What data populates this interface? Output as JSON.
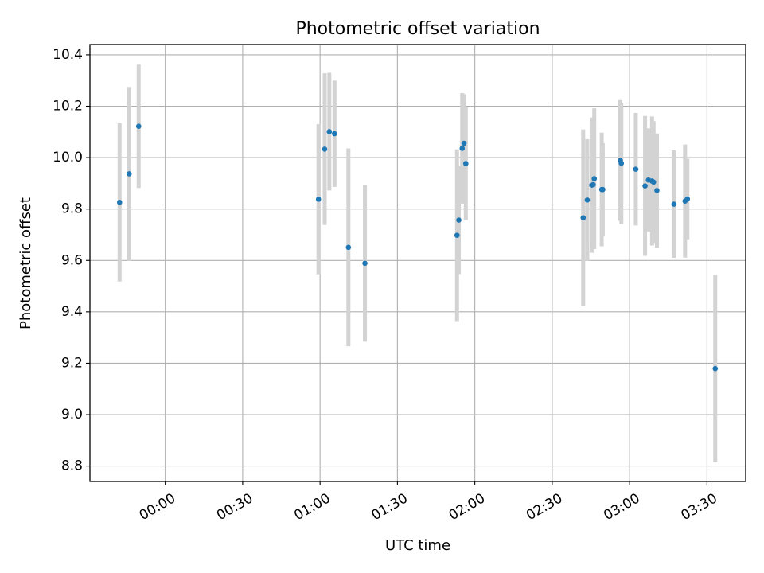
{
  "chart_data": {
    "type": "scatter",
    "title": "Photometric offset variation",
    "xlabel": "UTC time",
    "ylabel": "Photometric offset",
    "x_unit": "UTC minutes from 00:00",
    "xlim": [
      -29.2,
      225.0
    ],
    "ylim": [
      8.74,
      10.44
    ],
    "x_ticks": [
      {
        "value": 0,
        "label": "00:00"
      },
      {
        "value": 30,
        "label": "00:30"
      },
      {
        "value": 60,
        "label": "01:00"
      },
      {
        "value": 90,
        "label": "01:30"
      },
      {
        "value": 120,
        "label": "02:00"
      },
      {
        "value": 150,
        "label": "02:30"
      },
      {
        "value": 180,
        "label": "03:00"
      },
      {
        "value": 210,
        "label": "03:30"
      }
    ],
    "y_ticks": [
      {
        "value": 8.8,
        "label": "8.8"
      },
      {
        "value": 9.0,
        "label": "9.0"
      },
      {
        "value": 9.2,
        "label": "9.2"
      },
      {
        "value": 9.4,
        "label": "9.4"
      },
      {
        "value": 9.6,
        "label": "9.6"
      },
      {
        "value": 9.8,
        "label": "9.8"
      },
      {
        "value": 10.0,
        "label": "10.0"
      },
      {
        "value": 10.2,
        "label": "10.2"
      },
      {
        "value": 10.4,
        "label": "10.4"
      }
    ],
    "grid": true,
    "point_color": "#1f77b4",
    "errorbar_color": "#d3d3d3",
    "points": [
      {
        "x": -17.7,
        "y": 9.826,
        "err": 0.308
      },
      {
        "x": -14.0,
        "y": 9.937,
        "err": 0.338
      },
      {
        "x": -10.3,
        "y": 10.122,
        "err": 0.24
      },
      {
        "x": 59.4,
        "y": 9.838,
        "err": 0.292
      },
      {
        "x": 61.8,
        "y": 10.033,
        "err": 0.295
      },
      {
        "x": 63.6,
        "y": 10.101,
        "err": 0.229
      },
      {
        "x": 65.6,
        "y": 10.093,
        "err": 0.207
      },
      {
        "x": 71.0,
        "y": 9.651,
        "err": 0.385
      },
      {
        "x": 77.4,
        "y": 9.589,
        "err": 0.305
      },
      {
        "x": 113.1,
        "y": 9.698,
        "err": 0.334
      },
      {
        "x": 113.8,
        "y": 9.757,
        "err": 0.21
      },
      {
        "x": 115.1,
        "y": 10.036,
        "err": 0.215
      },
      {
        "x": 115.8,
        "y": 10.056,
        "err": 0.191
      },
      {
        "x": 116.5,
        "y": 9.977,
        "err": 0.22
      },
      {
        "x": 162.0,
        "y": 9.766,
        "err": 0.344
      },
      {
        "x": 163.6,
        "y": 9.835,
        "err": 0.237
      },
      {
        "x": 165.3,
        "y": 9.893,
        "err": 0.263
      },
      {
        "x": 166.3,
        "y": 9.918,
        "err": 0.274
      },
      {
        "x": 165.9,
        "y": 9.895,
        "err": 0.23
      },
      {
        "x": 169.2,
        "y": 9.876,
        "err": 0.221
      },
      {
        "x": 169.6,
        "y": 9.876,
        "err": 0.18
      },
      {
        "x": 176.4,
        "y": 9.989,
        "err": 0.235
      },
      {
        "x": 176.8,
        "y": 9.978,
        "err": 0.236
      },
      {
        "x": 182.4,
        "y": 9.955,
        "err": 0.219
      },
      {
        "x": 186.0,
        "y": 9.89,
        "err": 0.272
      },
      {
        "x": 187.3,
        "y": 9.913,
        "err": 0.201
      },
      {
        "x": 188.7,
        "y": 9.909,
        "err": 0.251
      },
      {
        "x": 189.3,
        "y": 9.905,
        "err": 0.237
      },
      {
        "x": 190.6,
        "y": 9.872,
        "err": 0.222
      },
      {
        "x": 197.2,
        "y": 9.819,
        "err": 0.209
      },
      {
        "x": 201.5,
        "y": 9.831,
        "err": 0.22
      },
      {
        "x": 202.4,
        "y": 9.839,
        "err": 0.157
      },
      {
        "x": 213.2,
        "y": 9.179,
        "err": 0.364
      }
    ]
  }
}
